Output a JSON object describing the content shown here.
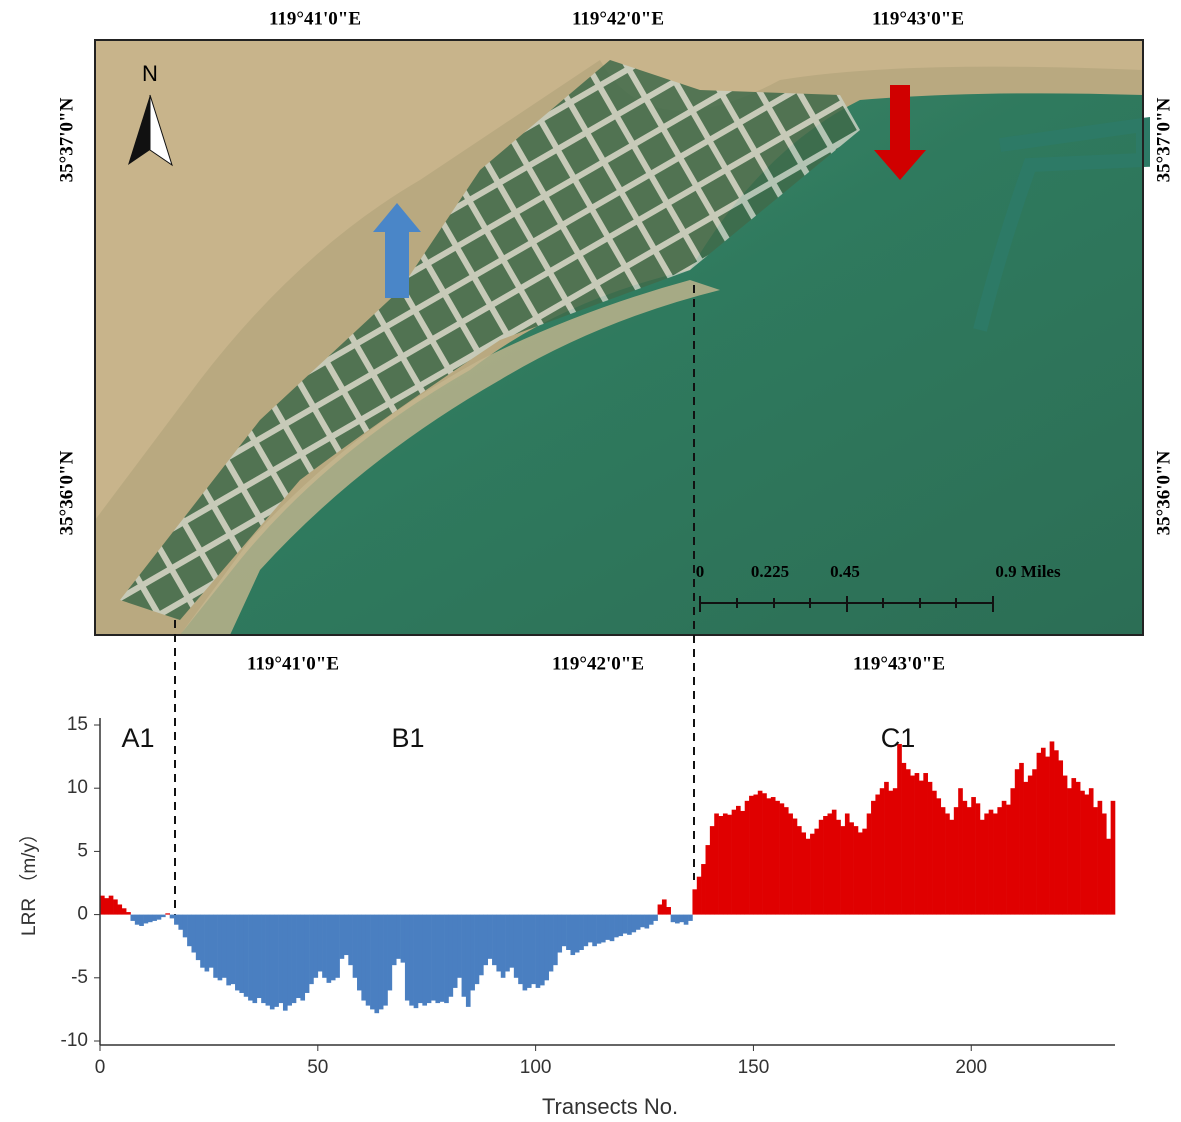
{
  "map": {
    "top_labels": [
      "119°41'0\"E",
      "119°42'0\"E",
      "119°43'0\"E"
    ],
    "bottom_labels": [
      "119°41'0\"E",
      "119°42'0\"E",
      "119°43'0\"E"
    ],
    "left_labels": [
      "35°37'0\"N",
      "35°36'0\"N"
    ],
    "right_labels": [
      "35°37'0\"N",
      "35°36'0\"N"
    ],
    "north": "N",
    "scale_labels": [
      "0",
      "0.225",
      "0.45",
      "0.9 Miles"
    ]
  },
  "chart_data": {
    "type": "bar",
    "xlabel": "Transects No.",
    "ylabel": "LRR （m/y）",
    "annotations": [
      "A1",
      "B1",
      "C1"
    ],
    "positive_color": "#e00000",
    "negative_color": "#4a7fc1",
    "xlim": [
      0,
      233
    ],
    "ylim": [
      -10,
      15
    ],
    "xticks": [
      0,
      50,
      100,
      150,
      200
    ],
    "yticks": [
      -10,
      -5,
      0,
      5,
      10,
      15
    ],
    "x": [
      1,
      2,
      3,
      4,
      5,
      6,
      7,
      8,
      9,
      10,
      11,
      12,
      13,
      14,
      15,
      16,
      17,
      18,
      19,
      20,
      21,
      22,
      23,
      24,
      25,
      26,
      27,
      28,
      29,
      30,
      31,
      32,
      33,
      34,
      35,
      36,
      37,
      38,
      39,
      40,
      41,
      42,
      43,
      44,
      45,
      46,
      47,
      48,
      49,
      50,
      51,
      52,
      53,
      54,
      55,
      56,
      57,
      58,
      59,
      60,
      61,
      62,
      63,
      64,
      65,
      66,
      67,
      68,
      69,
      70,
      71,
      72,
      73,
      74,
      75,
      76,
      77,
      78,
      79,
      80,
      81,
      82,
      83,
      84,
      85,
      86,
      87,
      88,
      89,
      90,
      91,
      92,
      93,
      94,
      95,
      96,
      97,
      98,
      99,
      100,
      101,
      102,
      103,
      104,
      105,
      106,
      107,
      108,
      109,
      110,
      111,
      112,
      113,
      114,
      115,
      116,
      117,
      118,
      119,
      120,
      121,
      122,
      123,
      124,
      125,
      126,
      127,
      128,
      129,
      130,
      131,
      132,
      133,
      134,
      135,
      136,
      137,
      138,
      139,
      140,
      141,
      142,
      143,
      144,
      145,
      146,
      147,
      148,
      149,
      150,
      151,
      152,
      153,
      154,
      155,
      156,
      157,
      158,
      159,
      160,
      161,
      162,
      163,
      164,
      165,
      166,
      167,
      168,
      169,
      170,
      171,
      172,
      173,
      174,
      175,
      176,
      177,
      178,
      179,
      180,
      181,
      182,
      183,
      184,
      185,
      186,
      187,
      188,
      189,
      190,
      191,
      192,
      193,
      194,
      195,
      196,
      197,
      198,
      199,
      200,
      201,
      202,
      203,
      204,
      205,
      206,
      207,
      208,
      209,
      210,
      211,
      212,
      213,
      214,
      215,
      216,
      217,
      218,
      219,
      220,
      221,
      222,
      223,
      224,
      225,
      226,
      227,
      228,
      229,
      230,
      231,
      232,
      233
    ],
    "values": [
      1.5,
      1.3,
      1.5,
      1.2,
      0.8,
      0.5,
      0.2,
      -0.5,
      -0.8,
      -0.9,
      -0.7,
      -0.6,
      -0.5,
      -0.4,
      -0.2,
      0.1,
      -0.3,
      -0.8,
      -1.2,
      -1.8,
      -2.5,
      -3,
      -3.6,
      -4.2,
      -4.5,
      -4.2,
      -5,
      -5.2,
      -5,
      -5.6,
      -5.5,
      -6,
      -6.2,
      -6.5,
      -6.8,
      -7,
      -6.6,
      -7,
      -7.2,
      -7.5,
      -7.3,
      -7,
      -7.6,
      -7.2,
      -7,
      -6.6,
      -6.8,
      -6.2,
      -5.5,
      -5,
      -4.5,
      -5,
      -5.4,
      -5.2,
      -5,
      -3.5,
      -3.2,
      -4,
      -5,
      -6,
      -6.8,
      -7.2,
      -7.5,
      -7.8,
      -7.5,
      -7.2,
      -6,
      -4,
      -3.5,
      -3.8,
      -6.8,
      -7.2,
      -7.4,
      -7,
      -7.2,
      -7,
      -6.8,
      -7,
      -6.9,
      -7,
      -6.5,
      -5.8,
      -5,
      -6.5,
      -7.3,
      -6,
      -5.5,
      -4.8,
      -4,
      -3.5,
      -4,
      -4.5,
      -5,
      -4.5,
      -4.2,
      -5,
      -5.5,
      -6,
      -5.8,
      -5.5,
      -5.8,
      -5.6,
      -5.2,
      -4.5,
      -4,
      -3,
      -2.5,
      -2.8,
      -3.2,
      -3,
      -2.8,
      -2.5,
      -2.2,
      -2.5,
      -2.3,
      -2.2,
      -2,
      -2.1,
      -1.8,
      -1.7,
      -1.5,
      -1.6,
      -1.4,
      -1.2,
      -1.0,
      -1.1,
      -0.8,
      -0.5,
      0.8,
      1.2,
      0.6,
      -0.6,
      -0.7,
      -0.6,
      -0.8,
      -0.5,
      2,
      3,
      4,
      5.5,
      7,
      8,
      7.8,
      8,
      7.9,
      8.3,
      8.6,
      8.2,
      9,
      9.4,
      9.5,
      9.8,
      9.6,
      9.2,
      9.3,
      9,
      8.8,
      8.5,
      8,
      7.6,
      7,
      6.5,
      6,
      6.4,
      6.8,
      7.5,
      7.8,
      8,
      8.3,
      7.5,
      7,
      8,
      7.3,
      7,
      6.5,
      6.8,
      8,
      9,
      9.5,
      10,
      10.5,
      9.8,
      10,
      13.5,
      12,
      11.5,
      11,
      11.2,
      10.6,
      11.2,
      10.5,
      9.8,
      9.2,
      8.5,
      8,
      7.5,
      8.5,
      10,
      9,
      8.5,
      9.3,
      8.8,
      7.5,
      8,
      8.3,
      8,
      8.5,
      9,
      8.7,
      10,
      11.5,
      12,
      10.5,
      11,
      11.5,
      12.8,
      13.2,
      12.5,
      13.7,
      13,
      12.2,
      11,
      10,
      10.8,
      10.5,
      9.8,
      9.5,
      10,
      8.5,
      9,
      8,
      6,
      9
    ]
  }
}
